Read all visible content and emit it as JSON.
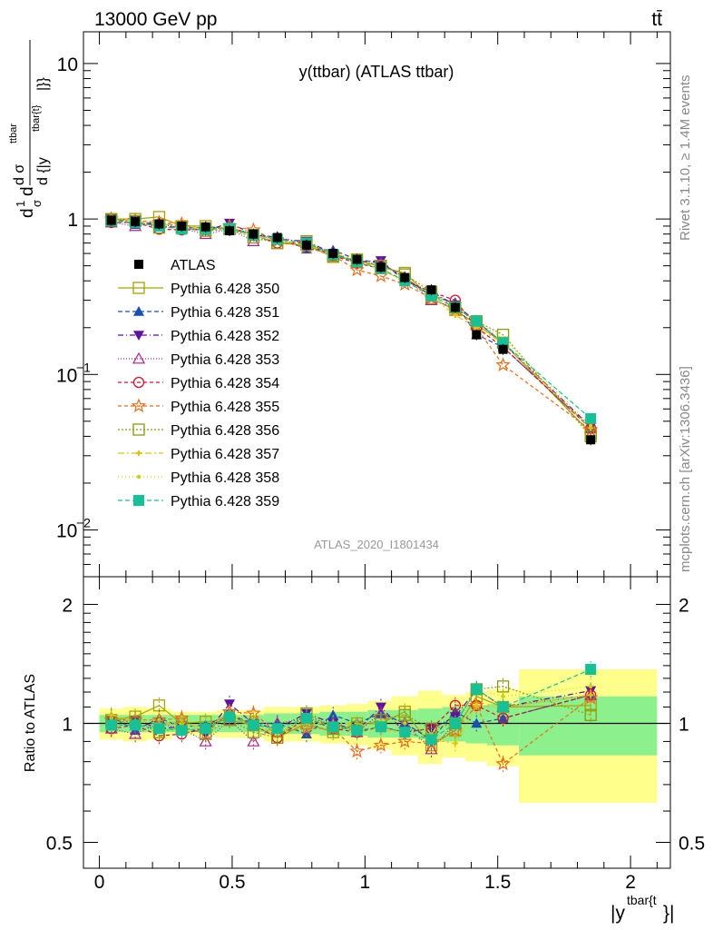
{
  "header": {
    "left": "13000 GeV pp",
    "right": "tt̄",
    "rivet": "Rivet 3.1.10, ≥ 1.4M events",
    "mcplots": "mcplots.cern.ch [arXiv:1306.3436]"
  },
  "chart_data": [
    {
      "type": "line",
      "title": "y(ttbar) (ATLAS ttbar)",
      "watermark": "ATLAS_2020_I1801434",
      "ylabel_parts": {
        "num": "d σ",
        "num_sup": "ttbar",
        "den": "d {|y",
        "den_sup": "tbar{t}",
        "den_tail": "|}}",
        "prefix_num": "1",
        "prefix_den": "σ"
      },
      "yscale": "log",
      "ylim": [
        0.005,
        16
      ],
      "xlim": [
        -0.06,
        2.15
      ],
      "yticks": [
        {
          "v": 0.01,
          "label": "10",
          "sup": "−2"
        },
        {
          "v": 0.1,
          "label": "10",
          "sup": "−1"
        },
        {
          "v": 1,
          "label": "1",
          "sup": ""
        },
        {
          "v": 10,
          "label": "10",
          "sup": ""
        }
      ],
      "x": [
        0.045,
        0.135,
        0.225,
        0.31,
        0.4,
        0.49,
        0.58,
        0.67,
        0.78,
        0.88,
        0.97,
        1.06,
        1.15,
        1.25,
        1.34,
        1.42,
        1.52,
        1.85
      ],
      "data": {
        "name": "ATLAS",
        "values": [
          0.98,
          0.96,
          0.93,
          0.9,
          0.89,
          0.84,
          0.8,
          0.76,
          0.68,
          0.6,
          0.55,
          0.49,
          0.42,
          0.35,
          0.27,
          0.18,
          0.145,
          0.038
        ]
      },
      "series": [
        {
          "name": "Pythia 6.428 350",
          "color": "#a9a200",
          "dash": "",
          "marker": "square-open",
          "values": [
            1.0,
            1.0,
            1.03,
            0.9,
            0.9,
            0.86,
            0.79,
            0.7,
            0.68,
            0.57,
            0.55,
            0.49,
            0.45,
            0.31,
            0.26,
            0.21,
            0.16,
            0.042
          ]
        },
        {
          "name": "Pythia 6.428 351",
          "color": "#1a4fb4",
          "dash": "5,3",
          "marker": "triangle-up",
          "values": [
            1.02,
            0.92,
            0.96,
            0.88,
            0.88,
            0.88,
            0.8,
            0.76,
            0.64,
            0.63,
            0.55,
            0.52,
            0.42,
            0.32,
            0.29,
            0.18,
            0.15,
            0.045
          ]
        },
        {
          "name": "Pythia 6.428 352",
          "color": "#5a12a0",
          "dash": "6,3,1,3",
          "marker": "triangle-down",
          "values": [
            1.0,
            0.98,
            0.9,
            0.88,
            0.84,
            0.94,
            0.8,
            0.74,
            0.72,
            0.6,
            0.53,
            0.54,
            0.4,
            0.34,
            0.28,
            0.22,
            0.16,
            0.046
          ]
        },
        {
          "name": "Pythia 6.428 353",
          "color": "#b0208f",
          "dash": "1,2",
          "marker": "triangle-open",
          "values": [
            0.95,
            0.9,
            0.93,
            0.87,
            0.8,
            0.86,
            0.72,
            0.76,
            0.7,
            0.6,
            0.52,
            0.52,
            0.42,
            0.3,
            0.27,
            0.22,
            0.16,
            0.045
          ]
        },
        {
          "name": "Pythia 6.428 354",
          "color": "#d8102a",
          "dash": "4,3",
          "marker": "circle-open",
          "values": [
            0.95,
            0.95,
            0.86,
            0.85,
            0.86,
            0.88,
            0.79,
            0.7,
            0.7,
            0.58,
            0.52,
            0.48,
            0.4,
            0.34,
            0.3,
            0.2,
            0.15,
            0.045
          ]
        },
        {
          "name": "Pythia 6.428 355",
          "color": "#ee6b15",
          "dash": "4,3",
          "marker": "star",
          "values": [
            1.0,
            0.98,
            0.95,
            0.93,
            0.84,
            0.9,
            0.85,
            0.72,
            0.66,
            0.58,
            0.47,
            0.43,
            0.38,
            0.31,
            0.26,
            0.2,
            0.115,
            0.044
          ]
        },
        {
          "name": "Pythia 6.428 356",
          "color": "#8a9b10",
          "dash": "2,2",
          "marker": "square-open",
          "values": [
            0.99,
            0.97,
            0.88,
            0.88,
            0.84,
            0.86,
            0.76,
            0.7,
            0.72,
            0.58,
            0.54,
            0.5,
            0.44,
            0.34,
            0.27,
            0.22,
            0.18,
            0.04
          ]
        },
        {
          "name": "Pythia 6.428 357",
          "color": "#e2c20a",
          "dash": "7,3,2,3",
          "marker": "cross-small",
          "values": [
            1.03,
            0.97,
            0.93,
            0.9,
            0.86,
            0.89,
            0.78,
            0.72,
            0.68,
            0.6,
            0.55,
            0.47,
            0.4,
            0.32,
            0.24,
            0.2,
            0.16,
            0.045
          ]
        },
        {
          "name": "Pythia 6.428 358",
          "color": "#c5d510",
          "dash": "1,3",
          "marker": "dot",
          "values": [
            1.01,
            0.97,
            0.95,
            0.89,
            0.88,
            0.87,
            0.82,
            0.72,
            0.7,
            0.6,
            0.52,
            0.5,
            0.42,
            0.33,
            0.27,
            0.22,
            0.17,
            0.047
          ]
        },
        {
          "name": "Pythia 6.428 359",
          "color": "#16c197",
          "dash": "5,3",
          "marker": "square-filled",
          "values": [
            0.97,
            0.95,
            0.9,
            0.86,
            0.86,
            0.87,
            0.79,
            0.74,
            0.7,
            0.59,
            0.53,
            0.48,
            0.4,
            0.32,
            0.27,
            0.22,
            0.16,
            0.052
          ]
        }
      ],
      "legend_position": "center-left",
      "grid": false
    },
    {
      "type": "line",
      "ylabel": "Ratio to ATLAS",
      "xlabel_base": "|y",
      "xlabel_sup": "tbar{t",
      "xlabel_tail": "}|",
      "yscale": "log",
      "ylim": [
        0.43,
        2.35
      ],
      "xlim": [
        -0.06,
        2.15
      ],
      "yticks": [
        {
          "v": 0.5,
          "label": "0.5"
        },
        {
          "v": 1,
          "label": "1"
        },
        {
          "v": 2,
          "label": "2"
        }
      ],
      "xticks": [
        {
          "v": 0,
          "label": "0"
        },
        {
          "v": 0.5,
          "label": "0.5"
        },
        {
          "v": 1,
          "label": "1"
        },
        {
          "v": 1.5,
          "label": "1.5"
        },
        {
          "v": 2,
          "label": "2"
        }
      ],
      "bins": [
        0.0,
        0.09,
        0.18,
        0.27,
        0.35,
        0.44,
        0.53,
        0.62,
        0.72,
        0.83,
        0.93,
        1.01,
        1.1,
        1.2,
        1.29,
        1.38,
        1.46,
        1.58,
        2.1
      ],
      "band_stat": [
        0.05,
        0.05,
        0.05,
        0.05,
        0.05,
        0.05,
        0.05,
        0.06,
        0.06,
        0.07,
        0.07,
        0.08,
        0.08,
        0.09,
        0.1,
        0.11,
        0.12,
        0.17
      ],
      "band_total": [
        0.09,
        0.1,
        0.09,
        0.07,
        0.07,
        0.08,
        0.08,
        0.1,
        0.1,
        0.11,
        0.12,
        0.14,
        0.17,
        0.21,
        0.18,
        0.2,
        0.22,
        0.37
      ],
      "ratios": [
        [
          1.02,
          1.04,
          1.11,
          1.0,
          1.01,
          1.02,
          0.99,
          0.92,
          1.0,
          0.95,
          1.0,
          1.0,
          1.07,
          0.88,
          0.96,
          1.17,
          1.1,
          1.11
        ],
        [
          1.04,
          0.96,
          1.03,
          0.98,
          0.99,
          1.05,
          1.0,
          1.0,
          0.94,
          1.05,
          1.0,
          1.06,
          1.0,
          0.91,
          1.07,
          1.0,
          1.03,
          1.18
        ],
        [
          1.02,
          1.02,
          0.97,
          0.98,
          0.94,
          1.12,
          1.0,
          0.97,
          1.06,
          1.0,
          0.96,
          1.1,
          0.95,
          0.97,
          1.04,
          1.22,
          1.1,
          1.21
        ],
        [
          0.97,
          0.94,
          1.0,
          0.97,
          0.9,
          1.02,
          0.9,
          1.0,
          1.03,
          1.0,
          0.95,
          1.06,
          1.0,
          0.86,
          1.0,
          1.22,
          1.1,
          1.18
        ],
        [
          0.97,
          0.99,
          0.93,
          0.94,
          0.97,
          1.05,
          0.99,
          0.92,
          1.03,
          0.97,
          0.95,
          0.98,
          0.95,
          0.97,
          1.11,
          1.11,
          1.03,
          1.18
        ],
        [
          1.02,
          1.02,
          1.02,
          1.03,
          0.94,
          1.07,
          1.06,
          0.95,
          0.97,
          0.97,
          0.85,
          0.88,
          0.9,
          0.89,
          0.96,
          1.11,
          0.79,
          1.16
        ],
        [
          1.01,
          1.01,
          0.95,
          0.98,
          0.94,
          1.02,
          0.95,
          0.92,
          1.06,
          0.97,
          0.98,
          1.02,
          1.05,
          0.97,
          1.0,
          1.22,
          1.24,
          1.05
        ],
        [
          1.05,
          1.01,
          1.0,
          1.0,
          0.97,
          1.06,
          0.98,
          0.95,
          1.0,
          1.0,
          1.0,
          0.96,
          0.95,
          0.91,
          0.89,
          1.11,
          1.1,
          1.18
        ],
        [
          1.03,
          1.01,
          1.02,
          0.99,
          0.99,
          1.04,
          1.03,
          0.95,
          1.03,
          1.0,
          0.95,
          1.02,
          1.0,
          0.94,
          1.0,
          1.22,
          1.17,
          1.24
        ],
        [
          0.99,
          0.99,
          0.97,
          0.96,
          0.97,
          1.04,
          0.99,
          0.97,
          1.03,
          0.98,
          0.96,
          0.98,
          0.95,
          0.91,
          1.0,
          1.22,
          1.1,
          1.37
        ]
      ]
    }
  ]
}
